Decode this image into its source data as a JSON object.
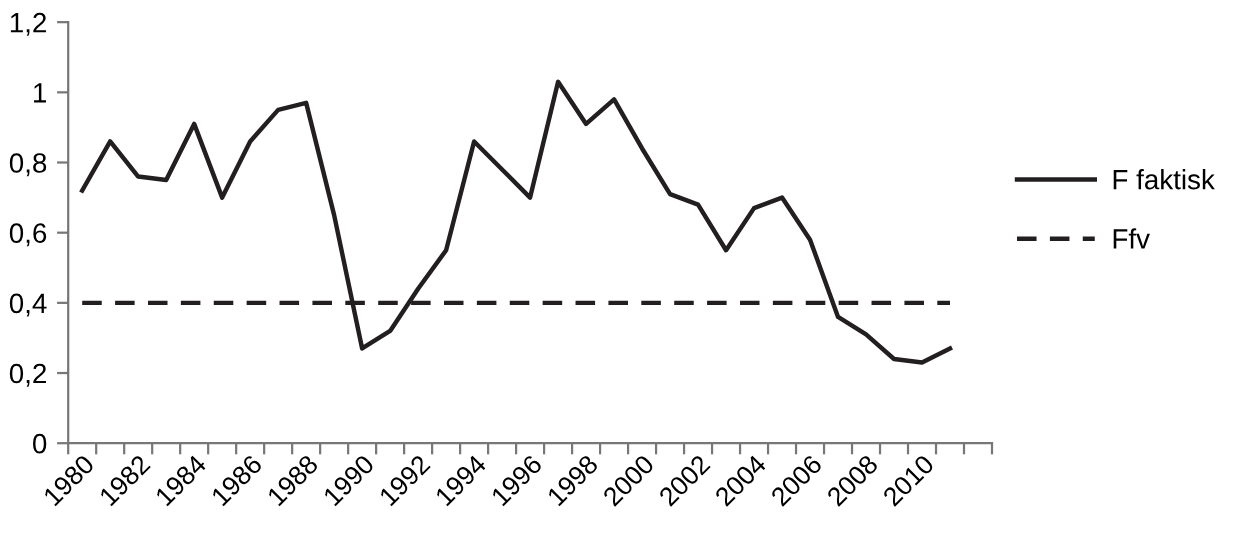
{
  "chart_data": {
    "type": "line",
    "categories": [
      "1980",
      null,
      "1982",
      null,
      "1984",
      null,
      "1986",
      null,
      "1988",
      null,
      "1990",
      null,
      "1992",
      null,
      "1994",
      null,
      "1996",
      null,
      "1998",
      null,
      "2000",
      null,
      "2002",
      null,
      "2004",
      null,
      "2006",
      null,
      "2008",
      null,
      "2010",
      null
    ],
    "series": [
      {
        "name": "F faktisk",
        "color": "#231f20",
        "line_style": "solid",
        "values": [
          0.72,
          0.86,
          0.76,
          0.75,
          0.91,
          0.7,
          0.86,
          0.95,
          0.97,
          0.65,
          0.27,
          0.32,
          0.44,
          0.55,
          0.86,
          0.78,
          0.7,
          1.03,
          0.91,
          0.98,
          0.84,
          0.71,
          0.68,
          0.55,
          0.67,
          0.7,
          0.58,
          0.36,
          0.31,
          0.24,
          0.23,
          0.27
        ]
      },
      {
        "name": "Ffv",
        "color": "#231f20",
        "line_style": "dashed",
        "values": [
          0.4,
          0.4,
          0.4,
          0.4,
          0.4,
          0.4,
          0.4,
          0.4,
          0.4,
          0.4,
          0.4,
          0.4,
          0.4,
          0.4,
          0.4,
          0.4,
          0.4,
          0.4,
          0.4,
          0.4,
          0.4,
          0.4,
          0.4,
          0.4,
          0.4,
          0.4,
          0.4,
          0.4,
          0.4,
          0.4,
          0.4,
          0.4
        ]
      }
    ],
    "ylim": [
      0,
      1.2
    ],
    "yticks": [
      0,
      {
        "value": 0.2,
        "label": "0,2"
      },
      {
        "value": 0.4,
        "label": "0,4"
      },
      {
        "value": 0.6,
        "label": "0,6"
      },
      {
        "value": 0.8,
        "label": "0,8"
      },
      1,
      {
        "value": 1.2,
        "label": "1,2"
      }
    ],
    "grid": false,
    "legend": "right",
    "marker": "none"
  }
}
